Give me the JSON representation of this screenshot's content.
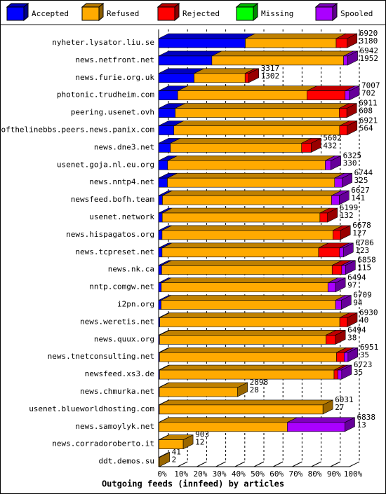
{
  "chart_data": {
    "type": "bar",
    "orientation": "horizontal",
    "stacked": true,
    "title": "Outgoing feeds (innfeed) by articles",
    "categories": [
      "nyheter.lysator.liu.se",
      "news.netfront.net",
      "news.furie.org.uk",
      "photonic.trudheim.com",
      "peering.usenet.ovh",
      "endofthelinebbs.peers.news.panix.com",
      "news.dne3.net",
      "usenet.goja.nl.eu.org",
      "news.nntp4.net",
      "newsfeed.bofh.team",
      "usenet.network",
      "news.hispagatos.org",
      "news.tcpreset.net",
      "news.nk.ca",
      "nntp.comgw.net",
      "i2pn.org",
      "news.weretis.net",
      "news.quux.org",
      "news.tnetconsulting.net",
      "newsfeed.xs3.de",
      "news.chmurka.net",
      "usenet.blueworldhosting.com",
      "news.samoylyk.net",
      "news.corradoroberto.it",
      "ddt.demos.su"
    ],
    "series": [
      {
        "name": "Accepted",
        "color": "#0000ff",
        "values": [
          45.4,
          27.9,
          18.6,
          10.0,
          8.7,
          8.0,
          6.2,
          4.7,
          4.6,
          2.0,
          1.9,
          1.8,
          1.8,
          1.6,
          1.4,
          1.3,
          0.6,
          0.5,
          0.5,
          0.5,
          0.4,
          0.4,
          0.2,
          0.2,
          0
        ]
      },
      {
        "name": "Refused",
        "color": "#ffaa00",
        "values": [
          47.6,
          69.0,
          26.7,
          67.7,
          85.9,
          86.8,
          68.7,
          82.6,
          87.6,
          88.6,
          82.6,
          89.5,
          82.0,
          89.3,
          87.3,
          91.4,
          94.3,
          87.2,
          92.7,
          91.4,
          41.0,
          85.7,
          67.2,
          12.7,
          0.6
        ]
      },
      {
        "name": "Rejected",
        "color": "#ff0000",
        "values": [
          5.8,
          0,
          2.0,
          20.0,
          4.0,
          4.0,
          5.0,
          0,
          0,
          0,
          4.0,
          4.0,
          11.0,
          5.0,
          0,
          0,
          4.0,
          5.0,
          4.0,
          2.0,
          0,
          0,
          0,
          0,
          0
        ]
      },
      {
        "name": "Missing",
        "color": "#00ff00",
        "values": [
          0,
          0,
          0,
          0,
          0,
          0,
          0,
          0,
          0,
          0,
          0,
          0,
          0,
          0,
          0,
          0,
          0,
          0,
          0,
          0,
          0,
          0,
          0,
          0,
          0
        ]
      },
      {
        "name": "Spooled",
        "color": "#aa00ff",
        "values": [
          0,
          2.2,
          0,
          2.3,
          0,
          0,
          0,
          3.0,
          4.0,
          4.0,
          0,
          0,
          2.0,
          2.0,
          4.0,
          3.0,
          0,
          0,
          2.0,
          2.0,
          0,
          0,
          30.2,
          0,
          0
        ]
      }
    ],
    "offered": [
      6920,
      6942,
      3317,
      7007,
      6911,
      6921,
      5602,
      6325,
      6744,
      6627,
      6199,
      6678,
      6786,
      6858,
      6494,
      6709,
      6930,
      6494,
      6951,
      6723,
      2898,
      6031,
      6838,
      903,
      41
    ],
    "accepted": [
      3180,
      1952,
      1302,
      702,
      608,
      564,
      432,
      330,
      325,
      141,
      132,
      127,
      123,
      115,
      97,
      94,
      40,
      38,
      35,
      35,
      28,
      27,
      13,
      12,
      2
    ],
    "xlim": [
      0,
      100
    ],
    "xticks": [
      {
        "value": 0,
        "label": "0%"
      },
      {
        "value": 10,
        "label": "10%"
      },
      {
        "value": 20,
        "label": "20%"
      },
      {
        "value": 30,
        "label": "30%"
      },
      {
        "value": 40,
        "label": "40%"
      },
      {
        "value": 50,
        "label": "50%"
      },
      {
        "value": 60,
        "label": "60%"
      },
      {
        "value": 70,
        "label": "70%"
      },
      {
        "value": 80,
        "label": "80%"
      },
      {
        "value": 90,
        "label": "90%"
      },
      {
        "value": 100,
        "label": "100%"
      }
    ],
    "grid": true
  }
}
